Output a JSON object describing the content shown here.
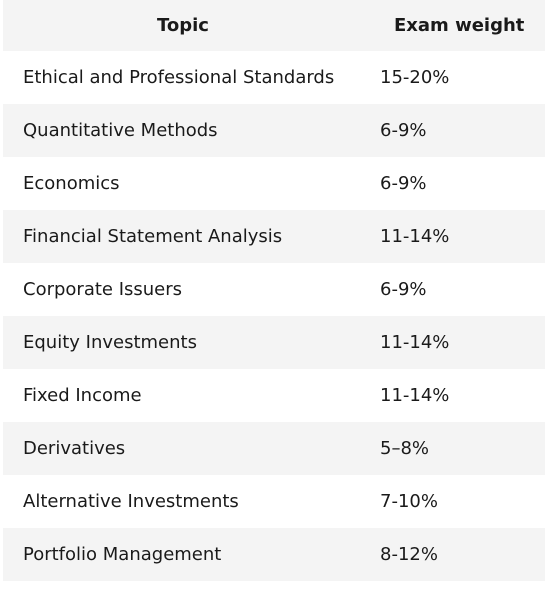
{
  "table": {
    "headers": {
      "topic": "Topic",
      "weight": "Exam weight"
    },
    "rows": [
      {
        "topic": "Ethical and Professional Standards",
        "weight": "15-20%"
      },
      {
        "topic": "Quantitative Methods",
        "weight": "6-9%"
      },
      {
        "topic": "Economics",
        "weight": "6-9%"
      },
      {
        "topic": "Financial Statement Analysis",
        "weight": "11-14%"
      },
      {
        "topic": "Corporate Issuers",
        "weight": "6-9%"
      },
      {
        "topic": "Equity Investments",
        "weight": "11-14%"
      },
      {
        "topic": "Fixed Income",
        "weight": "11-14%"
      },
      {
        "topic": "Derivatives",
        "weight": "5–8%"
      },
      {
        "topic": "Alternative Investments",
        "weight": "7-10%"
      },
      {
        "topic": "Portfolio Management",
        "weight": "8-12%"
      }
    ]
  },
  "colors": {
    "stripe": "#f4f4f4",
    "background": "#ffffff",
    "text": "#1a1a1a"
  }
}
